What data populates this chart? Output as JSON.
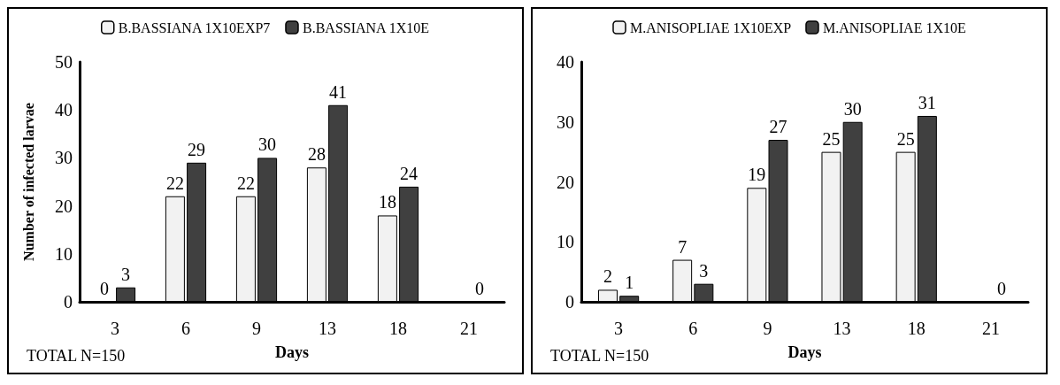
{
  "chart_data": [
    {
      "type": "bar",
      "categories": [
        "3",
        "6",
        "9",
        "13",
        "18",
        "21"
      ],
      "ylabel": "Number of infected larvae",
      "xlabel": "Days",
      "annotations": [
        "TOTAL N=150"
      ],
      "ylim": [
        0,
        50
      ],
      "yticks": [
        0,
        10,
        20,
        30,
        40,
        50
      ],
      "data_labels": true,
      "legend": "top",
      "grid": false,
      "series": [
        {
          "name": "B.BASSIANA 1X10EXP7",
          "color": "#f2f2f2",
          "values": [
            0,
            22,
            22,
            28,
            18,
            null
          ]
        },
        {
          "name": "B.BASSIANA 1X10E",
          "color": "#404040",
          "values": [
            3,
            29,
            30,
            41,
            24,
            0
          ]
        }
      ]
    },
    {
      "type": "bar",
      "categories": [
        "3",
        "6",
        "9",
        "13",
        "18",
        "21"
      ],
      "xlabel": "Days",
      "annotations": [
        "TOTAL N=150"
      ],
      "ylim": [
        0,
        40
      ],
      "yticks": [
        0,
        10,
        20,
        30,
        40
      ],
      "data_labels": true,
      "legend": "top",
      "grid": false,
      "series": [
        {
          "name": "M.ANISOPLIAE 1X10EXP",
          "color": "#f2f2f2",
          "values": [
            2,
            7,
            19,
            25,
            25,
            null
          ]
        },
        {
          "name": "M.ANISOPLIAE 1X10E",
          "color": "#404040",
          "values": [
            1,
            3,
            27,
            30,
            31,
            0
          ]
        }
      ]
    }
  ]
}
